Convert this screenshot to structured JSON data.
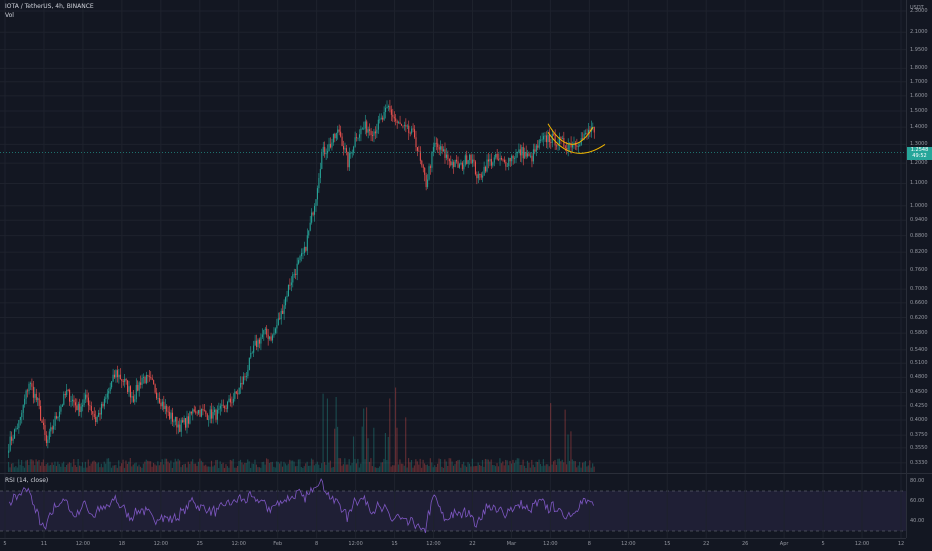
{
  "header": {
    "title": "IOTA / TetherUS, 4h, BINANCE",
    "volume_label": "Vol",
    "rsi_label": "RSI (14, close)"
  },
  "price_axis": {
    "currency": "USDT",
    "ticks": [
      "2.3000",
      "2.1000",
      "1.9500",
      "1.8000",
      "1.7000",
      "1.6000",
      "1.5000",
      "1.4000",
      "1.3000",
      "1.2000",
      "1.1000",
      "1.0000",
      "0.9400",
      "0.8800",
      "0.8200",
      "0.7600",
      "0.7000",
      "0.6600",
      "0.6200",
      "0.5800",
      "0.5400",
      "0.5100",
      "0.4800",
      "0.4500",
      "0.4250",
      "0.4000",
      "0.3750",
      "0.3550",
      "0.3330"
    ]
  },
  "rsi_axis": {
    "ticks": [
      "80.00",
      "60.00",
      "40.00"
    ]
  },
  "time_axis": {
    "ticks": [
      "5",
      "11",
      "12:00",
      "18",
      "12:00",
      "25",
      "12:00",
      "Feb",
      "8",
      "12:00",
      "15",
      "12:00",
      "22",
      "Mar",
      "12:00",
      "8",
      "12:00",
      "15",
      "22",
      "26",
      "Apr",
      "5",
      "12:00",
      "12"
    ]
  },
  "last_price": {
    "price": "1.2548",
    "countdown": "49:52"
  },
  "colors": {
    "background": "#131722",
    "up": "#26a69a",
    "down": "#ef5350",
    "pattern_line": "#f0b400",
    "rsi_line": "#7e57c2",
    "rsi_band": "#7e57c2"
  },
  "chart_data": {
    "type": "candlestick",
    "symbol": "IOTA / TetherUS",
    "interval": "4h",
    "exchange": "BINANCE",
    "scale": "log",
    "ylim": [
      0.33,
      2.35
    ],
    "path_anchors_close": [
      [
        0,
        0.36
      ],
      [
        8,
        0.4
      ],
      [
        14,
        0.47
      ],
      [
        20,
        0.43
      ],
      [
        26,
        0.36
      ],
      [
        32,
        0.4
      ],
      [
        40,
        0.45
      ],
      [
        48,
        0.42
      ],
      [
        54,
        0.44
      ],
      [
        60,
        0.4
      ],
      [
        66,
        0.43
      ],
      [
        74,
        0.49
      ],
      [
        80,
        0.47
      ],
      [
        86,
        0.44
      ],
      [
        92,
        0.48
      ],
      [
        98,
        0.47
      ],
      [
        104,
        0.44
      ],
      [
        110,
        0.41
      ],
      [
        118,
        0.39
      ],
      [
        124,
        0.4
      ],
      [
        128,
        0.42
      ],
      [
        136,
        0.41
      ],
      [
        144,
        0.41
      ],
      [
        152,
        0.43
      ],
      [
        158,
        0.45
      ],
      [
        164,
        0.49
      ],
      [
        170,
        0.55
      ],
      [
        176,
        0.58
      ],
      [
        182,
        0.57
      ],
      [
        188,
        0.63
      ],
      [
        194,
        0.72
      ],
      [
        200,
        0.78
      ],
      [
        204,
        0.82
      ],
      [
        208,
        0.92
      ],
      [
        212,
        1.05
      ],
      [
        216,
        1.25
      ],
      [
        222,
        1.3
      ],
      [
        228,
        1.38
      ],
      [
        234,
        1.2
      ],
      [
        240,
        1.36
      ],
      [
        246,
        1.4
      ],
      [
        252,
        1.38
      ],
      [
        258,
        1.45
      ],
      [
        262,
        1.52
      ],
      [
        268,
        1.42
      ],
      [
        274,
        1.38
      ],
      [
        280,
        1.35
      ],
      [
        284,
        1.2
      ],
      [
        288,
        1.1
      ],
      [
        294,
        1.3
      ],
      [
        300,
        1.25
      ],
      [
        306,
        1.2
      ],
      [
        312,
        1.18
      ],
      [
        318,
        1.25
      ],
      [
        324,
        1.12
      ],
      [
        330,
        1.2
      ],
      [
        336,
        1.22
      ],
      [
        342,
        1.2
      ],
      [
        348,
        1.24
      ],
      [
        354,
        1.26
      ],
      [
        360,
        1.22
      ],
      [
        366,
        1.3
      ],
      [
        372,
        1.34
      ],
      [
        378,
        1.32
      ],
      [
        384,
        1.3
      ],
      [
        390,
        1.31
      ],
      [
        396,
        1.33
      ],
      [
        402,
        1.39
      ],
      [
        404,
        1.35
      ]
    ],
    "volume_relative": "spikes near Feb 8 to Feb 22 and early March",
    "rsi": {
      "period": 14,
      "levels": [
        70,
        30
      ],
      "ylim": [
        25,
        85
      ]
    },
    "annotations": [
      {
        "type": "cup pattern",
        "color": "pattern_line",
        "location": "early March, ~1.30 to 1.40"
      }
    ]
  }
}
